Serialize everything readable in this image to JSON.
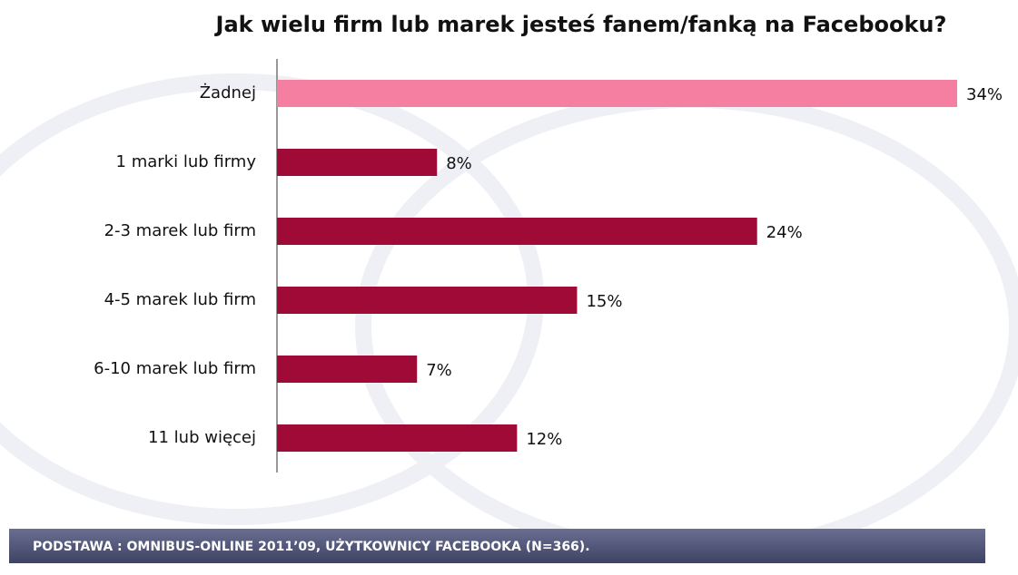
{
  "chart_data": {
    "type": "bar",
    "orientation": "horizontal",
    "title": "Jak wielu firm lub marek jesteś fanem/fanką na Facebooku?",
    "categories": [
      "Żadnej",
      "1 marki lub firmy",
      "2-3 marek lub firm",
      "4-5 marek lub firm",
      "6-10 marek lub firm",
      "11 lub więcej"
    ],
    "values": [
      34,
      8,
      24,
      15,
      7,
      12
    ],
    "value_labels": [
      "34%",
      "8%",
      "24%",
      "15%",
      "7%",
      "12%"
    ],
    "colors": [
      "#f47fa1",
      "#a00a36",
      "#a00a36",
      "#a00a36",
      "#a00a36",
      "#a00a36"
    ],
    "xlim": [
      0,
      34
    ],
    "footnote": "PODSTAWA : OMNIBUS-ONLINE 2011’09, UŻYTKOWNICY FACEBOOKA (N=366)."
  }
}
